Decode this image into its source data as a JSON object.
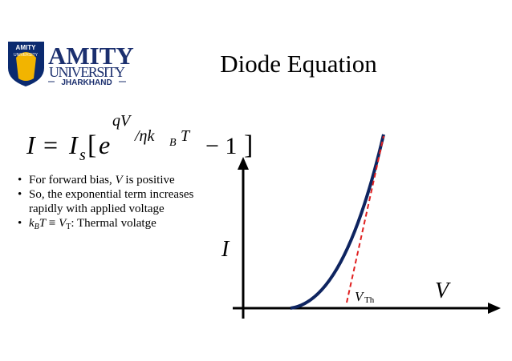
{
  "logo": {
    "badge_top": "AMITY",
    "badge_bottom": "UNIVERSITY",
    "name": "AMITY",
    "subname": "UNIVERSITY",
    "campus": "JHARKHAND"
  },
  "title": "Diode Equation",
  "equation": {
    "lhs": "I",
    "eq": "=",
    "is": "I",
    "is_sub": "s",
    "bracket_open": "[",
    "e": "e",
    "exp_num": "qV",
    "exp_rest": "/ηk",
    "exp_sub": "B",
    "exp_T": "T",
    "minus_one": "− 1",
    "bracket_close": "]"
  },
  "bullets": [
    [
      {
        "text": "For forward bias, "
      },
      {
        "text": "V",
        "style": "italic"
      },
      {
        "text": " is positive"
      }
    ],
    [
      {
        "text": "So, the exponential term increases rapidly with applied voltage"
      }
    ],
    [
      {
        "text": "k",
        "style": "italic"
      },
      {
        "text": "B",
        "style": "italic-sub"
      },
      {
        "text": "T",
        "style": "italic"
      },
      {
        "text": " ≡ "
      },
      {
        "text": "V",
        "style": "italic"
      },
      {
        "text": "T",
        "style": "sub"
      },
      {
        "text": ": Thermal volatge"
      }
    ]
  ],
  "graph": {
    "y_label": "I",
    "x_label": "V",
    "threshold_label": "V",
    "threshold_sub": "Th"
  }
}
